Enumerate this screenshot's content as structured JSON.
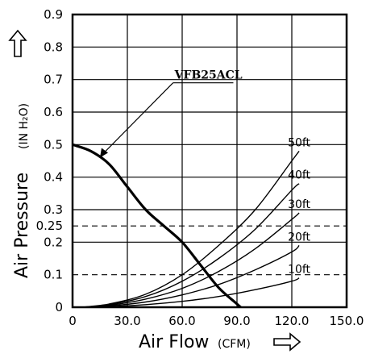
{
  "chart_data": {
    "type": "line",
    "xlabel": "Air Flow",
    "xlabel_unit": "(CFM)",
    "ylabel": "Air Pressure",
    "ylabel_unit": "(IN H₂O)",
    "xlim": [
      0,
      150
    ],
    "ylim": [
      0,
      0.9
    ],
    "x_ticks": [
      {
        "value": 0,
        "label": "0"
      },
      {
        "value": 30,
        "label": "30.0"
      },
      {
        "value": 60,
        "label": "60.0"
      },
      {
        "value": 90,
        "label": "90.0"
      },
      {
        "value": 120,
        "label": "120.0"
      },
      {
        "value": 150,
        "label": "150.0"
      }
    ],
    "y_ticks": [
      {
        "value": 0,
        "label": "0"
      },
      {
        "value": 0.1,
        "label": "0.1"
      },
      {
        "value": 0.2,
        "label": "0.2"
      },
      {
        "value": 0.25,
        "label": "0.25"
      },
      {
        "value": 0.3,
        "label": "0.3"
      },
      {
        "value": 0.4,
        "label": "0.4"
      },
      {
        "value": 0.5,
        "label": "0.5"
      },
      {
        "value": 0.6,
        "label": "0.6"
      },
      {
        "value": 0.7,
        "label": "0.7"
      },
      {
        "value": 0.8,
        "label": "0.8"
      },
      {
        "value": 0.9,
        "label": "0.9"
      }
    ],
    "grid": true,
    "reference_lines": [
      0.25,
      0.1
    ],
    "series": [
      {
        "name": "VFB25ACL",
        "x": [
          0,
          10,
          20,
          30,
          40,
          50,
          60,
          70,
          80,
          90,
          92
        ],
        "y": [
          0.5,
          0.48,
          0.44,
          0.37,
          0.3,
          0.25,
          0.2,
          0.13,
          0.06,
          0.01,
          0.0
        ]
      },
      {
        "name": "50ft",
        "x": [
          5,
          20,
          40,
          60,
          80,
          100,
          120,
          124
        ],
        "y": [
          0.0,
          0.01,
          0.04,
          0.1,
          0.19,
          0.3,
          0.45,
          0.48
        ]
      },
      {
        "name": "40ft",
        "x": [
          5,
          20,
          40,
          60,
          80,
          100,
          120,
          124
        ],
        "y": [
          0.0,
          0.008,
          0.033,
          0.08,
          0.15,
          0.24,
          0.36,
          0.38
        ]
      },
      {
        "name": "30ft",
        "x": [
          5,
          20,
          40,
          60,
          80,
          100,
          120,
          124
        ],
        "y": [
          0.0,
          0.006,
          0.025,
          0.058,
          0.11,
          0.18,
          0.27,
          0.29
        ]
      },
      {
        "name": "20ft",
        "x": [
          5,
          20,
          40,
          60,
          80,
          100,
          120,
          124
        ],
        "y": [
          0.0,
          0.004,
          0.016,
          0.038,
          0.07,
          0.115,
          0.17,
          0.19
        ]
      },
      {
        "name": "10ft",
        "x": [
          5,
          20,
          40,
          60,
          80,
          100,
          120,
          124
        ],
        "y": [
          0.0,
          0.002,
          0.008,
          0.018,
          0.033,
          0.054,
          0.08,
          0.09
        ]
      }
    ]
  }
}
